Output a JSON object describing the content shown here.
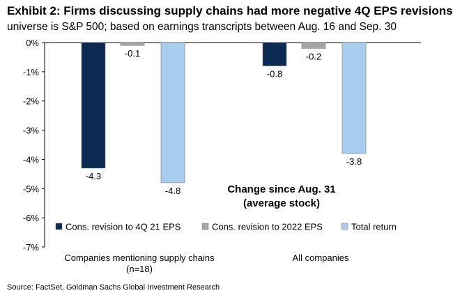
{
  "title": "Exhibit 2: Firms discussing supply chains had more negative 4Q EPS revisions",
  "subtitle": "universe is S&P 500; based on earnings transcripts between Aug. 16 and Sep. 30",
  "source": "Source: FactSet, Goldman Sachs Global Investment Research",
  "chart_data": {
    "type": "bar",
    "categories": [
      [
        "Companies mentioning supply chains",
        "(n=18)"
      ],
      [
        "All companies"
      ]
    ],
    "series": [
      {
        "name": "Cons. revision to 4Q 21 EPS",
        "values": [
          -4.3,
          -0.8
        ],
        "labels": [
          "-4.3",
          "-0.8"
        ],
        "color": "#0c2b52"
      },
      {
        "name": "Cons. revision to 2022 EPS",
        "values": [
          -0.1,
          -0.2
        ],
        "labels": [
          "-0.1",
          "-0.2"
        ],
        "color": "#a6a6a6"
      },
      {
        "name": "Total return",
        "values": [
          -4.8,
          -3.8
        ],
        "labels": [
          "-4.8",
          "-3.8"
        ],
        "color": "#a8cdef"
      }
    ],
    "annotation": [
      "Change since Aug. 31",
      "(average stock)"
    ],
    "ylim": [
      -7,
      0
    ],
    "yticks": [
      "0%",
      "-1%",
      "-2%",
      "-3%",
      "-4%",
      "-5%",
      "-6%",
      "-7%"
    ],
    "grid": false,
    "legend": "bottom"
  }
}
